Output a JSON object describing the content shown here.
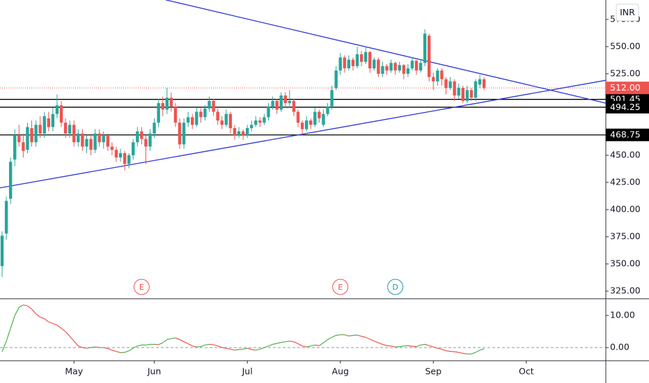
{
  "chart_data": {
    "type": "candlestick",
    "currency": "INR",
    "up_color": "#26a69a",
    "down_color": "#ef5350",
    "xlim": [
      -0.5,
      142.8
    ],
    "xticks": [
      {
        "value": 17,
        "label": "May"
      },
      {
        "value": 36,
        "label": "Jun"
      },
      {
        "value": 58,
        "label": "Jul"
      },
      {
        "value": 80,
        "label": "Aug"
      },
      {
        "value": 102,
        "label": "Sep"
      },
      {
        "value": 124,
        "label": "Oct"
      }
    ],
    "ylim": [
      318.6,
      592.9
    ],
    "yticks": [
      {
        "value": 325,
        "label": "325.00"
      },
      {
        "value": 350,
        "label": "350.00"
      },
      {
        "value": 375,
        "label": "375.00"
      },
      {
        "value": 400,
        "label": "400.00"
      },
      {
        "value": 425,
        "label": "425.00"
      },
      {
        "value": 450,
        "label": "450.00"
      },
      {
        "value": 525,
        "label": "525.00"
      },
      {
        "value": 550,
        "label": "550.00"
      },
      {
        "value": 575,
        "label": "575.00"
      }
    ],
    "candles": [
      [
        348,
        380,
        338,
        376
      ],
      [
        378,
        412,
        372,
        408
      ],
      [
        410,
        448,
        405,
        444
      ],
      [
        446,
        474,
        440,
        468
      ],
      [
        468,
        478,
        458,
        462
      ],
      [
        462,
        470,
        448,
        454
      ],
      [
        455,
        480,
        452,
        476
      ],
      [
        475,
        482,
        458,
        462
      ],
      [
        462,
        482,
        458,
        478
      ],
      [
        478,
        486,
        466,
        470
      ],
      [
        470,
        490,
        466,
        486
      ],
      [
        484,
        490,
        472,
        476
      ],
      [
        476,
        494,
        472,
        488
      ],
      [
        488,
        506,
        484,
        496
      ],
      [
        496,
        500,
        476,
        480
      ],
      [
        480,
        484,
        466,
        470
      ],
      [
        470,
        482,
        466,
        478
      ],
      [
        478,
        482,
        458,
        462
      ],
      [
        462,
        474,
        458,
        470
      ],
      [
        470,
        474,
        454,
        458
      ],
      [
        458,
        468,
        452,
        465
      ],
      [
        465,
        468,
        450,
        455
      ],
      [
        455,
        474,
        452,
        470
      ],
      [
        470,
        474,
        458,
        462
      ],
      [
        462,
        472,
        456,
        468
      ],
      [
        468,
        470,
        454,
        458
      ],
      [
        458,
        462,
        450,
        455
      ],
      [
        455,
        458,
        444,
        448
      ],
      [
        448,
        456,
        444,
        452
      ],
      [
        452,
        454,
        436,
        442
      ],
      [
        442,
        452,
        438,
        450
      ],
      [
        450,
        465,
        446,
        462
      ],
      [
        462,
        476,
        458,
        472
      ],
      [
        472,
        476,
        460,
        465
      ],
      [
        465,
        468,
        442,
        458
      ],
      [
        458,
        474,
        454,
        470
      ],
      [
        470,
        484,
        466,
        480
      ],
      [
        480,
        502,
        476,
        498
      ],
      [
        498,
        504,
        486,
        492
      ],
      [
        492,
        512,
        488,
        503
      ],
      [
        503,
        508,
        490,
        495
      ],
      [
        495,
        498,
        476,
        480
      ],
      [
        480,
        484,
        456,
        460
      ],
      [
        460,
        484,
        456,
        480
      ],
      [
        480,
        490,
        476,
        485
      ],
      [
        485,
        488,
        474,
        478
      ],
      [
        478,
        494,
        476,
        490
      ],
      [
        490,
        493,
        480,
        485
      ],
      [
        485,
        496,
        482,
        493
      ],
      [
        493,
        504,
        490,
        500
      ],
      [
        500,
        502,
        486,
        490
      ],
      [
        490,
        493,
        478,
        482
      ],
      [
        482,
        486,
        474,
        478
      ],
      [
        478,
        492,
        476,
        488
      ],
      [
        488,
        490,
        470,
        475
      ],
      [
        475,
        478,
        464,
        468
      ],
      [
        468,
        476,
        466,
        472
      ],
      [
        472,
        474,
        464,
        468
      ],
      [
        468,
        478,
        466,
        475
      ],
      [
        475,
        482,
        472,
        478
      ],
      [
        478,
        486,
        476,
        482
      ],
      [
        482,
        485,
        476,
        480
      ],
      [
        480,
        488,
        478,
        485
      ],
      [
        485,
        498,
        482,
        495
      ],
      [
        495,
        504,
        492,
        500
      ],
      [
        500,
        502,
        488,
        492
      ],
      [
        492,
        508,
        490,
        505
      ],
      [
        505,
        508,
        494,
        498
      ],
      [
        498,
        510,
        494,
        500
      ],
      [
        500,
        502,
        486,
        490
      ],
      [
        490,
        492,
        476,
        480
      ],
      [
        480,
        482,
        468,
        474
      ],
      [
        474,
        486,
        472,
        482
      ],
      [
        482,
        484,
        474,
        478
      ],
      [
        478,
        494,
        476,
        490
      ],
      [
        490,
        492,
        480,
        484
      ],
      [
        478,
        492,
        476,
        488
      ],
      [
        488,
        498,
        486,
        495
      ],
      [
        495,
        514,
        492,
        510
      ],
      [
        512,
        532,
        510,
        528
      ],
      [
        528,
        544,
        524,
        540
      ],
      [
        540,
        542,
        526,
        530
      ],
      [
        530,
        542,
        528,
        538
      ],
      [
        538,
        540,
        528,
        532
      ],
      [
        532,
        550,
        530,
        543
      ],
      [
        543,
        546,
        532,
        536
      ],
      [
        536,
        550,
        534,
        545
      ],
      [
        545,
        546,
        526,
        530
      ],
      [
        530,
        540,
        528,
        538
      ],
      [
        538,
        540,
        522,
        525
      ],
      [
        525,
        536,
        522,
        532
      ],
      [
        532,
        534,
        524,
        528
      ],
      [
        528,
        538,
        526,
        535
      ],
      [
        535,
        536,
        524,
        528
      ],
      [
        528,
        536,
        526,
        533
      ],
      [
        533,
        534,
        520,
        525
      ],
      [
        525,
        534,
        522,
        530
      ],
      [
        530,
        540,
        528,
        537
      ],
      [
        537,
        538,
        524,
        528
      ],
      [
        528,
        538,
        526,
        535
      ],
      [
        535,
        566,
        532,
        562
      ],
      [
        560,
        562,
        518,
        522
      ],
      [
        522,
        526,
        510,
        518
      ],
      [
        518,
        530,
        514,
        528
      ],
      [
        528,
        530,
        514,
        520
      ],
      [
        520,
        522,
        506,
        512
      ],
      [
        512,
        522,
        510,
        518
      ],
      [
        518,
        520,
        500,
        505
      ],
      [
        505,
        516,
        502,
        512
      ],
      [
        512,
        514,
        498,
        500
      ],
      [
        500,
        514,
        498,
        510
      ],
      [
        510,
        512,
        500,
        503
      ],
      [
        503,
        520,
        500,
        518
      ],
      [
        515,
        524,
        512,
        520
      ],
      [
        520,
        522,
        510,
        512
      ]
    ],
    "last_price": {
      "value": 512,
      "label": "512.00",
      "color": "#ef5350"
    },
    "levels": [
      {
        "value": 501.45,
        "label": "501.45"
      },
      {
        "value": 494.25,
        "label": "494.25"
      },
      {
        "value": 468.75,
        "label": "468.75"
      }
    ],
    "level_color": "#000000",
    "trendlines": [
      {
        "start": [
          38.7,
          593
        ],
        "end": [
          142.8,
          498
        ]
      },
      {
        "start": [
          -0.5,
          420
        ],
        "end": [
          142.8,
          519
        ]
      }
    ],
    "trendline_color": "#2a35d6",
    "events": [
      {
        "label": "E",
        "x": 33,
        "color": "#ef5350"
      },
      {
        "label": "E",
        "x": 80,
        "color": "#ef5350"
      },
      {
        "label": "D",
        "x": 93,
        "color": "#2196a3"
      }
    ],
    "indicator": {
      "ylim": [
        -4.1,
        15
      ],
      "yticks": [
        {
          "value": 0,
          "label": "0.00"
        },
        {
          "value": 10,
          "label": "10.00"
        }
      ],
      "values": [
        -1.3,
        2,
        6,
        10,
        12.5,
        13.3,
        13,
        12,
        10.5,
        9.5,
        9,
        8,
        7.5,
        7,
        6,
        5,
        3.5,
        2,
        0.5,
        0,
        -0.2,
        0,
        0.2,
        0,
        0,
        -0.3,
        -0.8,
        -1.2,
        -1.6,
        -1.5,
        -1,
        -0.2,
        0.5,
        0.8,
        0.8,
        1,
        1,
        0.9,
        1.5,
        2.5,
        2.8,
        3,
        2.5,
        1.8,
        1.2,
        0.5,
        0.2,
        0.3,
        0.8,
        1,
        0.9,
        0.5,
        0,
        -0.2,
        -0.5,
        -0.8,
        -0.6,
        -0.5,
        -0.2,
        -0.6,
        -0.8,
        -0.5,
        0,
        0.5,
        1,
        1.3,
        1.6,
        1.8,
        2,
        1.8,
        1.2,
        0.5,
        0.2,
        0.5,
        0.8,
        0.6,
        1.5,
        2.5,
        3.2,
        3.8,
        4,
        4,
        3.6,
        3.8,
        3.9,
        3.5,
        3.2,
        2.6,
        2,
        1.5,
        1,
        0.6,
        0.5,
        0.2,
        0.3,
        0.5,
        0.6,
        0.4,
        0.3,
        0.8,
        1,
        0.6,
        0.2,
        -0.2,
        -0.5,
        -1,
        -1.2,
        -1.3,
        -1.5,
        -1.8,
        -2,
        -2,
        -1.5,
        -0.8,
        -0.4
      ],
      "up_color": "#4caf50",
      "down_color": "#ef5350"
    }
  }
}
